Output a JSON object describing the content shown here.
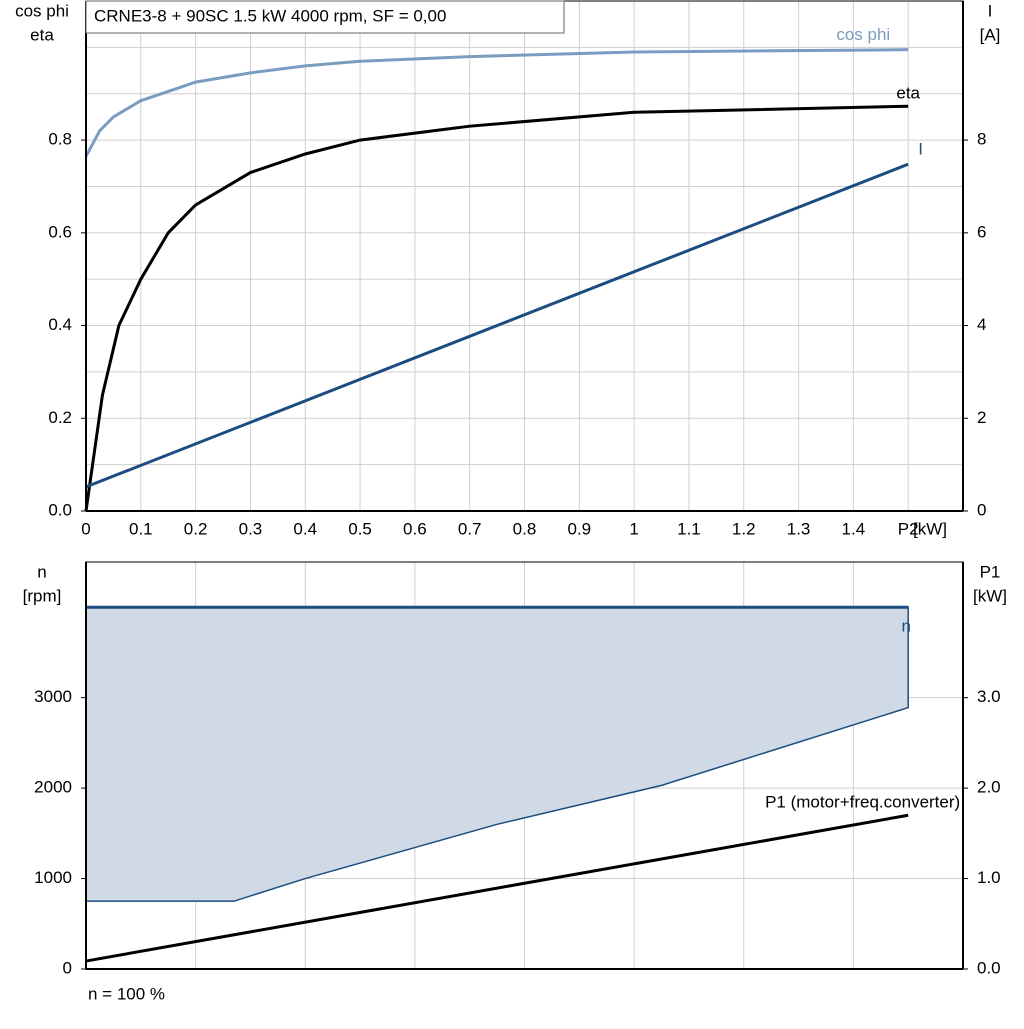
{
  "chart_data": [
    {
      "type": "line",
      "title": "CRNE3-8 + 90SC   1.5 kW   4000 rpm, SF = 0,00",
      "ylabel": [
        "cos phi",
        "eta"
      ],
      "y2label": [
        "I",
        "[A]"
      ],
      "xlabel": "[kW]",
      "xlim": [
        0,
        1.6
      ],
      "ylim": [
        0,
        1.1
      ],
      "y2lim": [
        0,
        11
      ],
      "xticks": [
        0,
        0.1,
        0.2,
        0.3,
        0.4,
        0.5,
        0.6,
        0.7,
        0.8,
        0.9,
        1.0,
        1.1,
        1.2,
        1.3,
        1.4,
        {
          "value": 1.5,
          "label": "P2"
        }
      ],
      "yticks": [
        {
          "value": 0,
          "label": "0.0"
        },
        0.2,
        0.4,
        0.6,
        0.8
      ],
      "ygrid": [
        0.1,
        0.3,
        0.5,
        0.7,
        0.9,
        1.0
      ],
      "y2ticks": [
        0,
        2,
        4,
        6,
        8
      ],
      "series": [
        {
          "name": "cos phi",
          "color": "#7b9cc0",
          "x": [
            0,
            0.025,
            0.05,
            0.1,
            0.15,
            0.2,
            0.3,
            0.4,
            0.5,
            0.7,
            1.0,
            1.5
          ],
          "values": [
            0.765,
            0.82,
            0.85,
            0.885,
            0.905,
            0.925,
            0.945,
            0.96,
            0.97,
            0.98,
            0.99,
            0.995
          ]
        },
        {
          "name": "eta",
          "color": "#000000",
          "x": [
            0,
            0.03,
            0.06,
            0.1,
            0.15,
            0.2,
            0.3,
            0.4,
            0.5,
            0.7,
            1.0,
            1.5
          ],
          "values": [
            0,
            0.25,
            0.4,
            0.5,
            0.6,
            0.66,
            0.73,
            0.77,
            0.8,
            0.83,
            0.86,
            0.873
          ]
        },
        {
          "name": "I",
          "color": "#1b4d80",
          "axis": "y2",
          "x": [
            0,
            1.5
          ],
          "values": [
            0.52,
            7.48
          ]
        }
      ]
    },
    {
      "type": "area",
      "ylabel": [
        "n",
        "[rpm]"
      ],
      "y2label": [
        "P1",
        "[kW]"
      ],
      "note": "n = 100 %",
      "xlim": [
        0,
        1.6
      ],
      "ylim": [
        0,
        4500
      ],
      "y2lim": [
        0,
        4.5
      ],
      "xgrid": [
        0.2,
        0.4,
        0.6,
        0.8,
        1.0,
        1.2,
        1.4
      ],
      "yticks": [
        0,
        1000,
        2000,
        3000
      ],
      "y2ticks": [
        {
          "value": 0,
          "label": "0.0"
        },
        {
          "value": 1,
          "label": "1.0"
        },
        {
          "value": 2,
          "label": "2.0"
        },
        {
          "value": 3,
          "label": "3.0"
        }
      ],
      "band": {
        "color": "#cfdae6",
        "x": [
          0,
          0.27,
          0.4,
          0.75,
          1.05,
          1.5
        ],
        "lower": [
          750,
          750,
          1000,
          1600,
          2030,
          2890
        ]
      },
      "series": [
        {
          "name": "n",
          "color": "#1b4d80",
          "x": [
            0,
            1.5
          ],
          "values": [
            4000,
            4000
          ]
        },
        {
          "name": "P1 (motor+freq.converter)",
          "color": "#000000",
          "axis": "y2",
          "x": [
            0,
            1.5
          ],
          "values": [
            0.088,
            1.7
          ]
        }
      ]
    }
  ]
}
